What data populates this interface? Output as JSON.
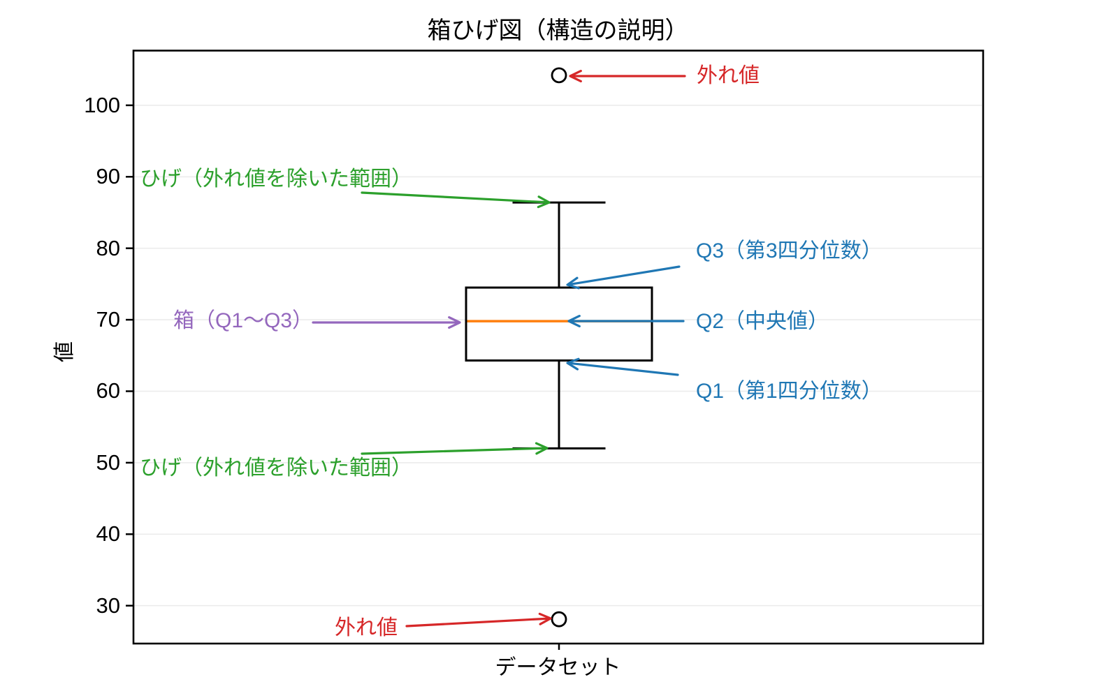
{
  "chart_data": {
    "type": "boxplot",
    "title": "箱ひげ図（構造の説明）",
    "xlabel": "データセット",
    "ylabel": "値",
    "x_categories": [
      "データセット"
    ],
    "ylim": [
      24.7,
      107.7
    ],
    "yticks": [
      30,
      40,
      50,
      60,
      70,
      80,
      90,
      100
    ],
    "grid": "horizontal-light",
    "series": [
      {
        "name": "データセット",
        "q1": 64.3,
        "median": 69.8,
        "q3": 74.5,
        "whisker_low": 52.0,
        "whisker_high": 86.4,
        "outliers": [
          104.2,
          28.1
        ]
      }
    ],
    "colors": {
      "box_edge": "#000000",
      "median": "#ff7f0e",
      "grid": "#ececec",
      "frame": "#000000",
      "annotation_red": "#d62728",
      "annotation_green": "#2ca02c",
      "annotation_blue": "#1f77b4",
      "annotation_purple": "#9467bd"
    }
  },
  "annotations": [
    {
      "name": "annotation-outlier-top",
      "label": "外れ値",
      "color_key": "annotation_red"
    },
    {
      "name": "annotation-whisker-top",
      "label": "ひげ（外れ値を除いた範囲）",
      "color_key": "annotation_green"
    },
    {
      "name": "annotation-q3",
      "label": "Q3（第3四分位数）",
      "color_key": "annotation_blue"
    },
    {
      "name": "annotation-q2",
      "label": "Q2（中央値）",
      "color_key": "annotation_blue"
    },
    {
      "name": "annotation-box",
      "label": "箱（Q1〜Q3）",
      "color_key": "annotation_purple"
    },
    {
      "name": "annotation-q1",
      "label": "Q1（第1四分位数）",
      "color_key": "annotation_blue"
    },
    {
      "name": "annotation-whisker-bottom",
      "label": "ひげ（外れ値を除いた範囲）",
      "color_key": "annotation_green"
    },
    {
      "name": "annotation-outlier-bottom",
      "label": "外れ値",
      "color_key": "annotation_red"
    }
  ]
}
